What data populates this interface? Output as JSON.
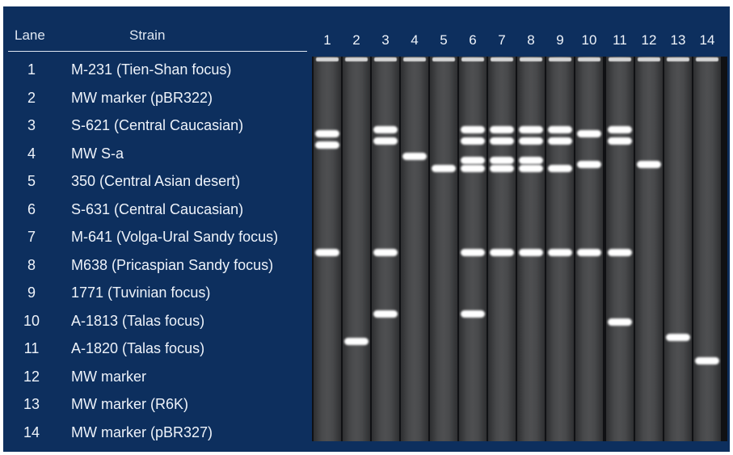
{
  "table": {
    "header_lane": "Lane",
    "header_strain": "Strain",
    "rows": [
      {
        "lane": "1",
        "strain": "M-231 (Tien-Shan focus)"
      },
      {
        "lane": "2",
        "strain": "MW marker (pBR322)"
      },
      {
        "lane": "3",
        "strain": "S-621 (Central Caucasian)"
      },
      {
        "lane": "4",
        "strain": "MW S-a"
      },
      {
        "lane": "5",
        "strain": "350 (Central Asian desert)"
      },
      {
        "lane": "6",
        "strain": "S-631 (Central Caucasian)"
      },
      {
        "lane": "7",
        "strain": "M-641 (Volga-Ural Sandy focus)"
      },
      {
        "lane": "8",
        "strain": "M638 (Pricaspian Sandy focus)"
      },
      {
        "lane": "9",
        "strain": "1771 (Tuvinian focus)"
      },
      {
        "lane": "10",
        "strain": "A-1813 (Talas focus)"
      },
      {
        "lane": "11",
        "strain": "A-1820 (Talas focus)"
      },
      {
        "lane": "12",
        "strain": "MW marker"
      },
      {
        "lane": "13",
        "strain": "MW marker (R6K)"
      },
      {
        "lane": "14",
        "strain": "MW marker (pBR327)"
      }
    ]
  },
  "gel": {
    "lane_labels": [
      "1",
      "2",
      "3",
      "4",
      "5",
      "6",
      "7",
      "8",
      "9",
      "10",
      "11",
      "12",
      "13",
      "14"
    ],
    "band_migration": [
      [
        0.2,
        0.23,
        0.51
      ],
      [
        0.74
      ],
      [
        0.19,
        0.22,
        0.51,
        0.67
      ],
      [
        0.26
      ],
      [
        0.29
      ],
      [
        0.19,
        0.22,
        0.27,
        0.29,
        0.51,
        0.67
      ],
      [
        0.19,
        0.22,
        0.27,
        0.29,
        0.51
      ],
      [
        0.19,
        0.22,
        0.27,
        0.29,
        0.51
      ],
      [
        0.19,
        0.22,
        0.29,
        0.51
      ],
      [
        0.2,
        0.28,
        0.51
      ],
      [
        0.19,
        0.22,
        0.51,
        0.69
      ],
      [
        0.28
      ],
      [
        0.73
      ],
      [
        0.79
      ]
    ],
    "band_colors": {
      "band": "#ffffff",
      "background": "#0d2f5e"
    }
  }
}
